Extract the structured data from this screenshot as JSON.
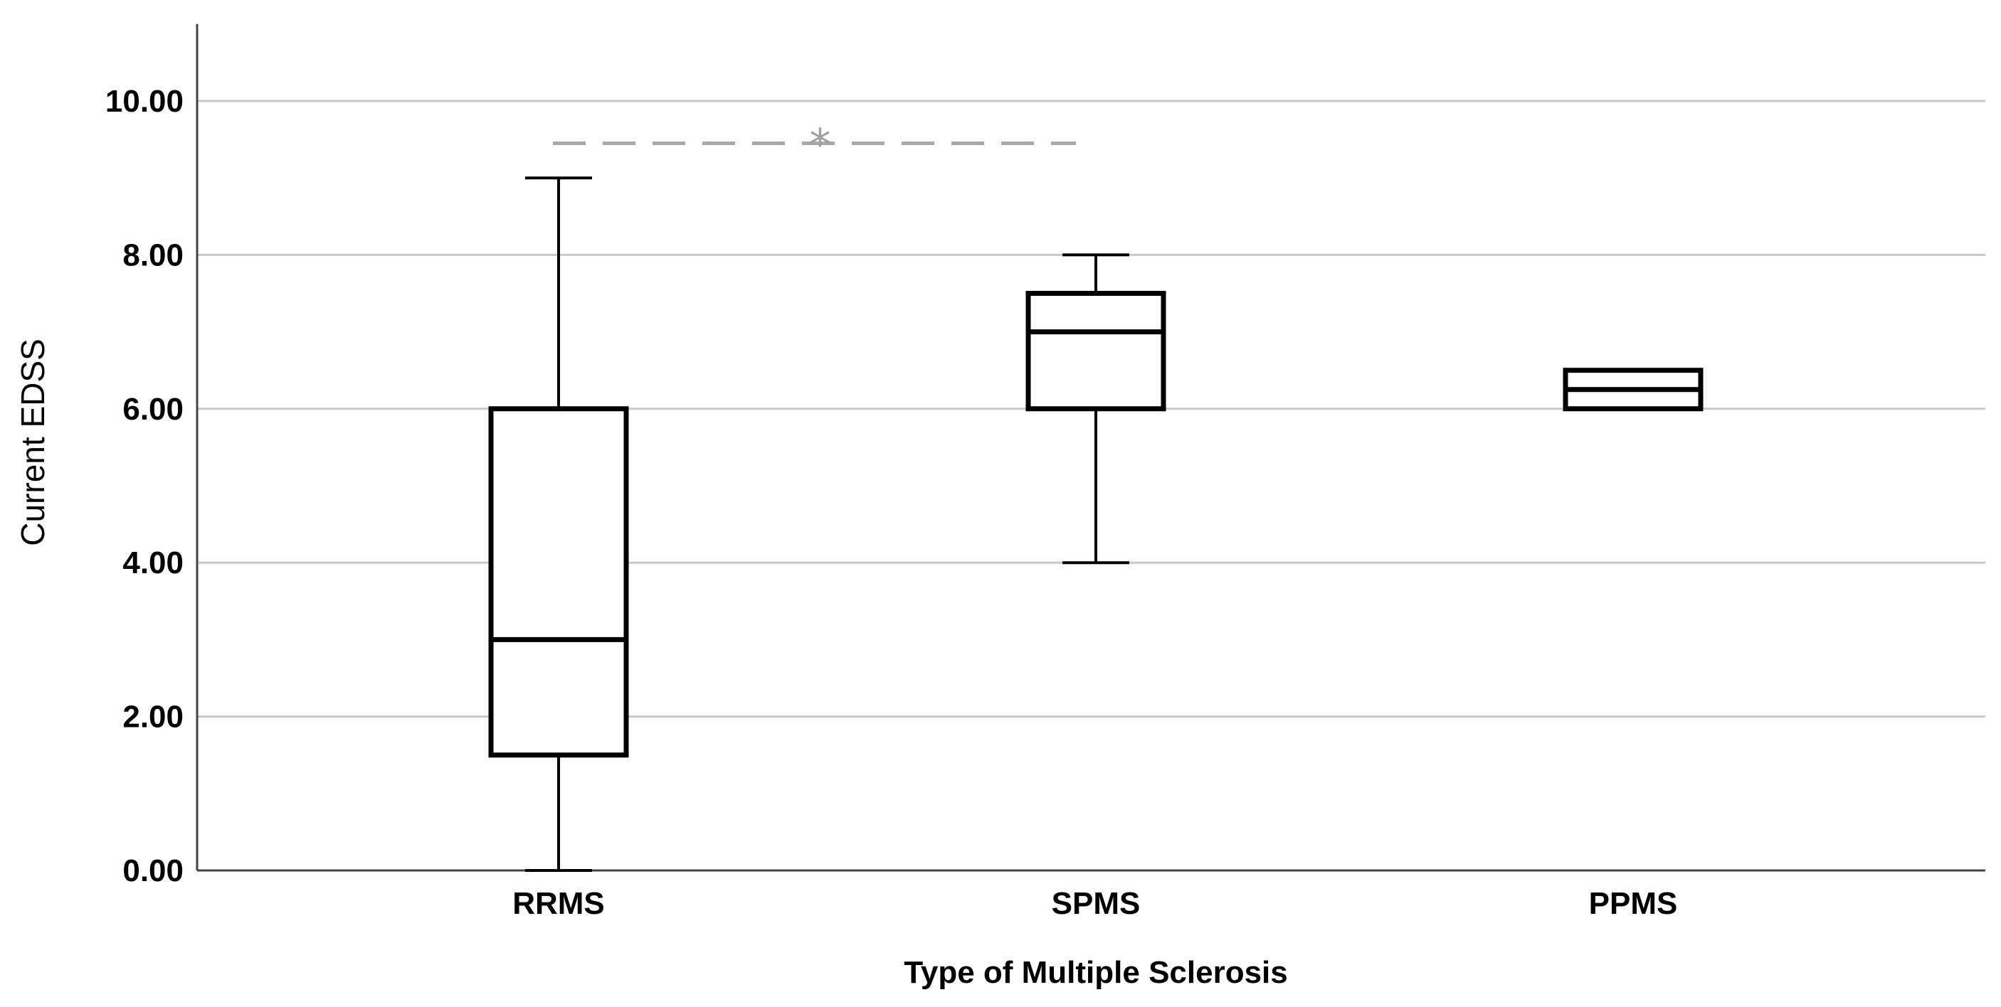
{
  "chart_data": {
    "type": "box",
    "xlabel": "Type of Multiple Sclerosis",
    "ylabel": "Current EDSS",
    "ylim": [
      0,
      11
    ],
    "yticks": [
      0,
      2,
      4,
      6,
      8,
      10
    ],
    "ytick_labels": [
      "0.00",
      "2.00",
      "4.00",
      "6.00",
      "8.00",
      "10.00"
    ],
    "grid": "horizontal",
    "categories": [
      "RRMS",
      "SPMS",
      "PPMS"
    ],
    "boxes": [
      {
        "category": "RRMS",
        "min": 0,
        "q1": 1.5,
        "median": 3,
        "q3": 6,
        "max": 9
      },
      {
        "category": "SPMS",
        "min": 4,
        "q1": 6,
        "median": 7,
        "q3": 7.5,
        "max": 8
      },
      {
        "category": "PPMS",
        "min": 6,
        "q1": 6,
        "median": 6.25,
        "q3": 6.5,
        "max": 6.5
      }
    ],
    "annotations": [
      {
        "type": "significance",
        "from": "RRMS",
        "to": "SPMS",
        "y": 9.45,
        "label": "*"
      }
    ]
  }
}
